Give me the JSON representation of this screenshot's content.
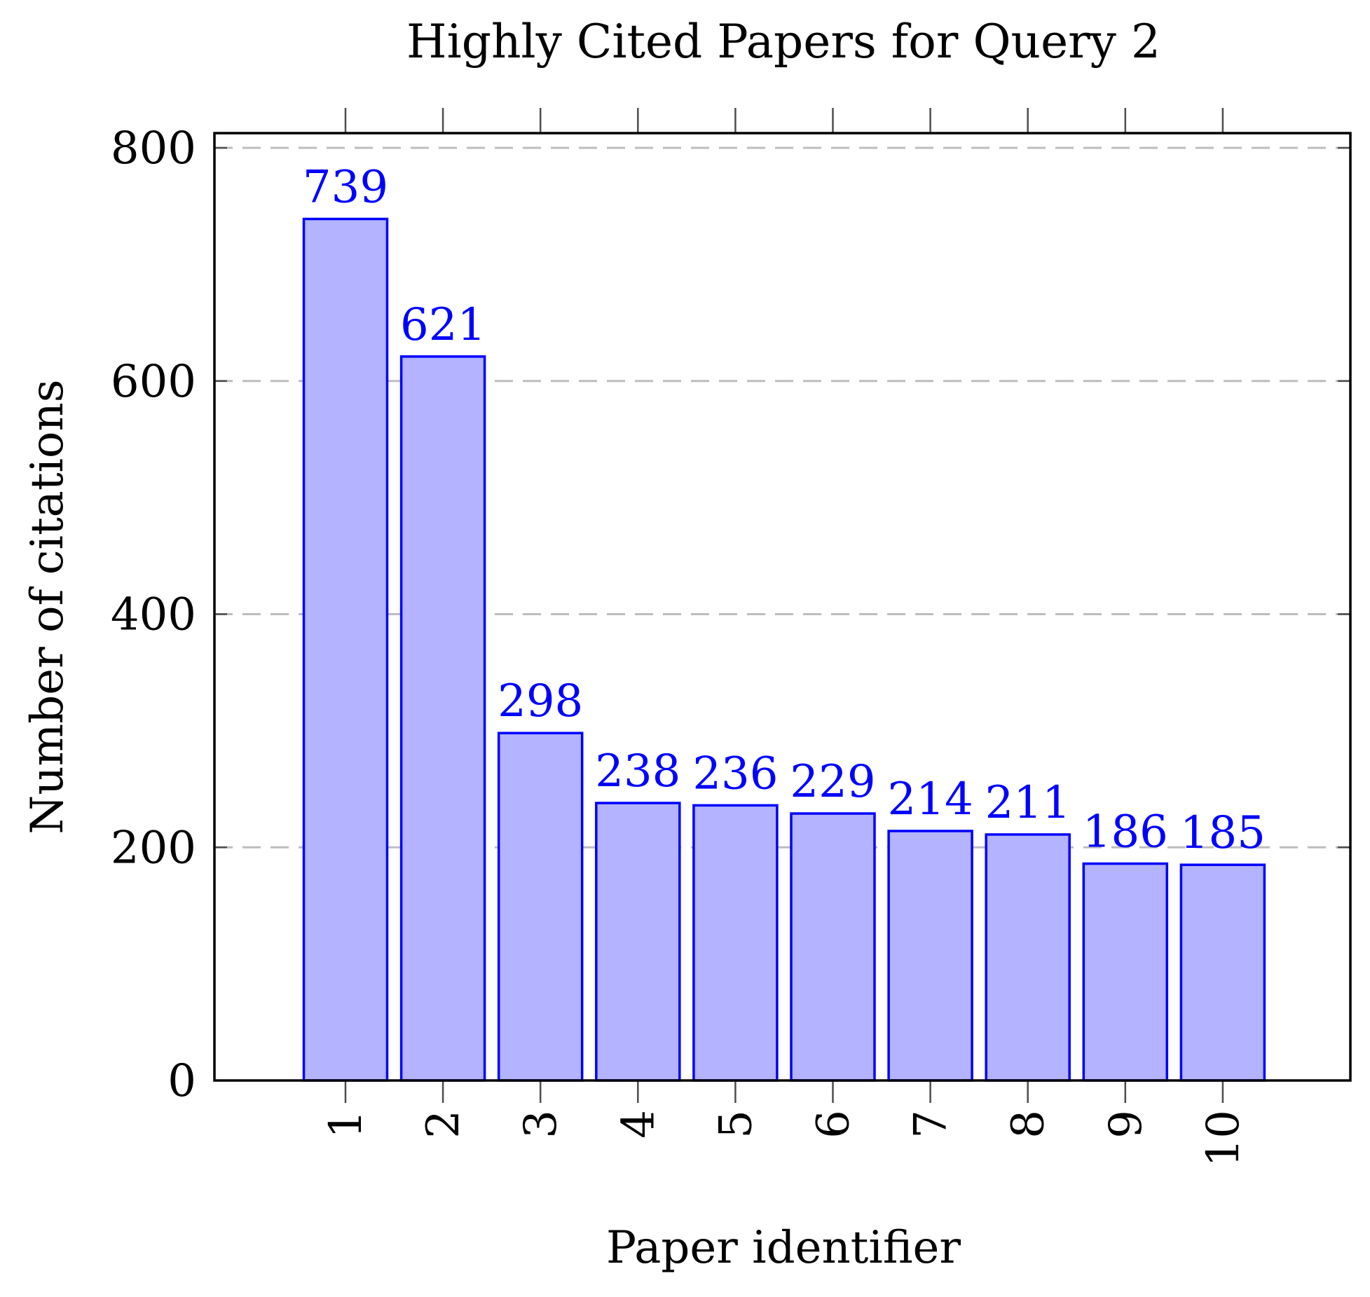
{
  "chart_data": {
    "type": "bar",
    "title": "Highly Cited Papers for Query 2",
    "xlabel": "Paper identifier",
    "ylabel": "Number of citations",
    "categories": [
      "1",
      "2",
      "3",
      "4",
      "5",
      "6",
      "7",
      "8",
      "9",
      "10"
    ],
    "values": [
      739,
      621,
      298,
      238,
      236,
      229,
      214,
      211,
      186,
      185
    ],
    "data_labels": [
      "739",
      "621",
      "298",
      "238",
      "236",
      "229",
      "214",
      "211",
      "186",
      "185"
    ],
    "ylim": [
      0,
      800
    ],
    "yticks": [
      0,
      200,
      400,
      600,
      800
    ],
    "ytick_labels": [
      "0",
      "200",
      "400",
      "600",
      "800"
    ],
    "xtick_rotation": "vertical",
    "grid": "horizontal dashed",
    "legend": "none",
    "colors": {
      "bar_fill": "#b3b3ff",
      "bar_stroke": "#0000ff",
      "data_label": "#0000ff",
      "grid": "#bdbdbd",
      "axis": "#000000"
    }
  }
}
